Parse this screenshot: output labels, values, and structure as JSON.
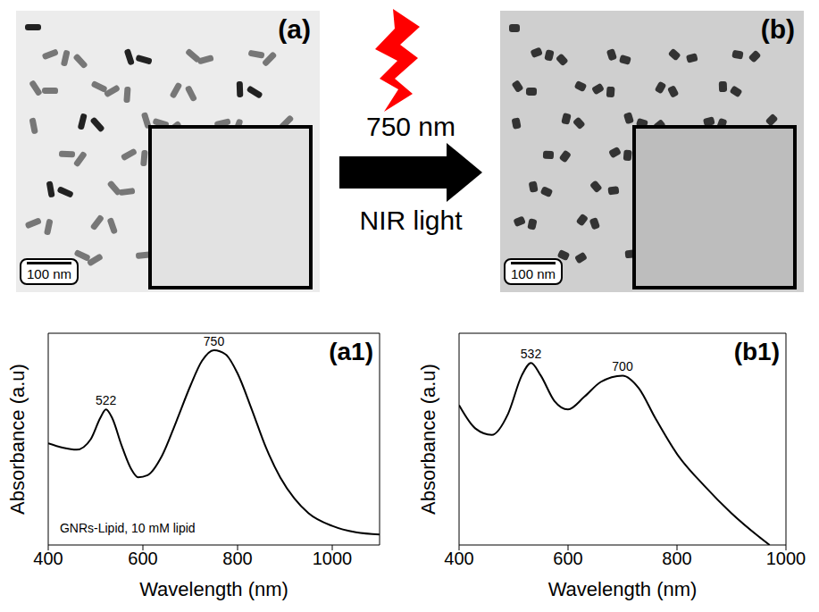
{
  "images": [
    {
      "label": "(a)",
      "scale_bar": "100 nm"
    },
    {
      "label": "(b)",
      "scale_bar": "100 nm"
    }
  ],
  "arrow": {
    "lines": [
      "750 nm",
      "NIR light"
    ]
  },
  "chart_data": [
    {
      "type": "line",
      "title": "(a1)",
      "x_label": "Wavelength (nm)",
      "y_label": "Absorbance (a.u)",
      "color": "#000000",
      "x": [
        400,
        430,
        460,
        490,
        510,
        522,
        535,
        555,
        575,
        590,
        610,
        640,
        670,
        700,
        725,
        750,
        775,
        800,
        830,
        860,
        890,
        920,
        950,
        1000,
        1050,
        1100
      ],
      "values": [
        0.48,
        0.46,
        0.45,
        0.5,
        0.6,
        0.64,
        0.6,
        0.47,
        0.36,
        0.32,
        0.33,
        0.42,
        0.58,
        0.75,
        0.87,
        0.92,
        0.9,
        0.81,
        0.64,
        0.46,
        0.32,
        0.22,
        0.15,
        0.09,
        0.06,
        0.05
      ],
      "xlim": [
        400,
        1100
      ],
      "xticks": [
        400,
        600,
        800,
        1000
      ],
      "ylim": [
        0,
        1
      ],
      "tick_labels": "x",
      "annotations": [
        {
          "text": "522",
          "x": 522,
          "y": 0.64
        },
        {
          "text": "750",
          "x": 750,
          "y": 0.92
        }
      ],
      "note": {
        "text": "GNRs-Lipid, 10 mM lipid",
        "x": 415,
        "y": 0.08
      }
    },
    {
      "type": "line",
      "title": "(b1)",
      "x_label": "Wavelength (nm)",
      "y_label": "Absorbance (a.u)",
      "color": "#000000",
      "x": [
        400,
        430,
        460,
        490,
        515,
        532,
        550,
        575,
        600,
        630,
        660,
        700,
        730,
        760,
        800,
        850,
        900,
        950,
        970
      ],
      "values": [
        0.66,
        0.55,
        0.52,
        0.62,
        0.8,
        0.86,
        0.8,
        0.68,
        0.64,
        0.7,
        0.77,
        0.8,
        0.74,
        0.6,
        0.43,
        0.28,
        0.15,
        0.04,
        0
      ],
      "xlim": [
        400,
        1000
      ],
      "xticks": [
        400,
        600,
        800,
        1000
      ],
      "ylim": [
        0,
        1
      ],
      "tick_labels": "x",
      "annotations": [
        {
          "text": "532",
          "x": 532,
          "y": 0.86
        },
        {
          "text": "700",
          "x": 700,
          "y": 0.8
        }
      ]
    }
  ]
}
